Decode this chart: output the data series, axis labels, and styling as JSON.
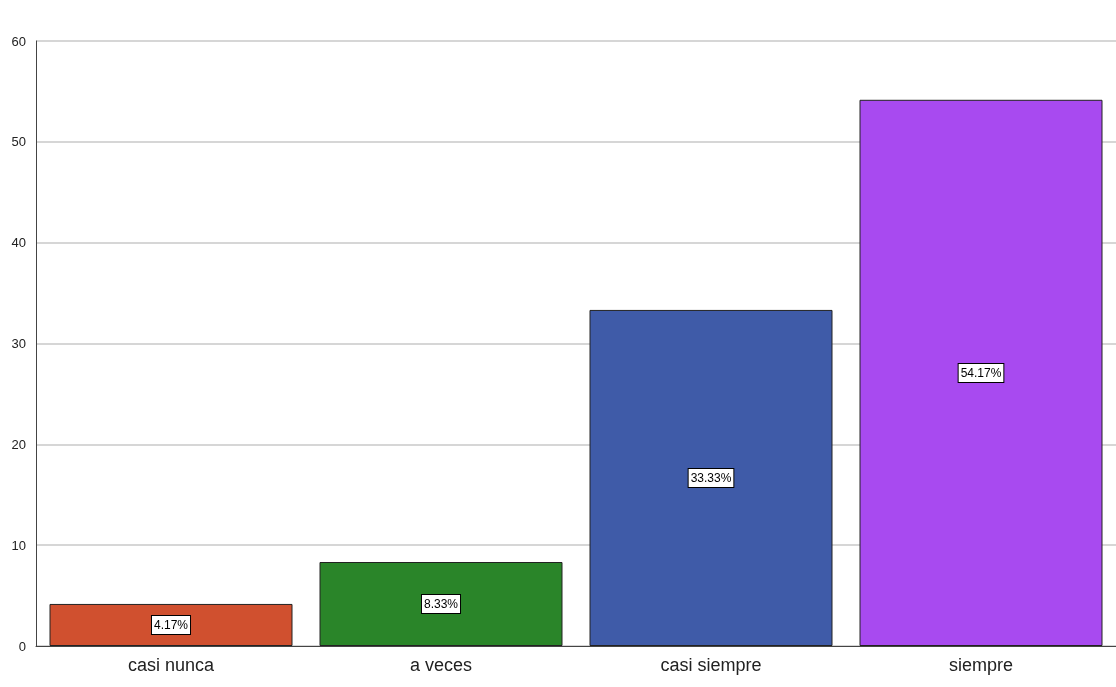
{
  "chart_data": {
    "type": "bar",
    "categories": [
      "casi nunca",
      "a veces",
      "casi siempre",
      "siempre"
    ],
    "values": [
      4.17,
      8.33,
      33.33,
      54.17
    ],
    "colors": [
      "#d0502f",
      "#2a8529",
      "#3f5ba8",
      "#a84af0"
    ],
    "value_labels": [
      "4.17%",
      "8.33%",
      "33.33%",
      "54.17%"
    ],
    "ylim": [
      0,
      60
    ],
    "yticks": [
      0,
      10,
      20,
      30,
      40,
      50,
      60
    ],
    "grid": "y"
  }
}
